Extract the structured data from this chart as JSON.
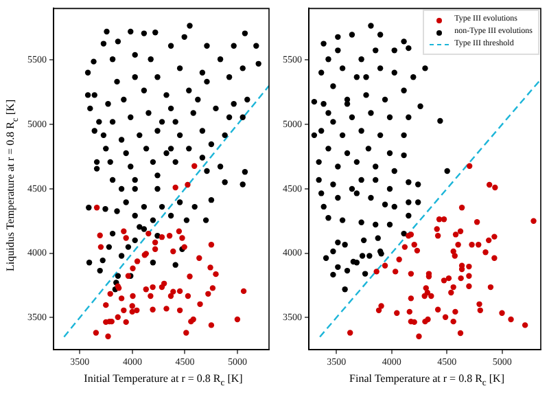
{
  "chart_data": [
    {
      "type": "scatter",
      "xlabel": "Initial Temperature at r = 0.8 R$_{c}$ [K]",
      "ylabel": "Liquidus Temperature at r = 0.8 R$_{c}$ [K]",
      "xlim": [
        3250,
        5300
      ],
      "ylim": [
        3250,
        5900
      ],
      "xticks": [
        3500,
        4000,
        4500,
        5000
      ],
      "yticks": [
        3500,
        4000,
        4500,
        5000,
        5500
      ],
      "grid": false,
      "legend": false,
      "series": [
        {
          "color": "#cc0000",
          "marker": "circle",
          "x": [
            3662,
            3692,
            3700,
            3918,
            3940,
            4153,
            4217,
            4281,
            4354,
            4444,
            4474,
            4495,
            4388,
            4130,
            4217,
            4047,
            4004,
            3961,
            3871,
            3862,
            3790,
            3748,
            3897,
            4004,
            4130,
            4173,
            4194,
            4281,
            4388,
            4366,
            4302,
            4452,
            4529,
            4546,
            4636,
            4751,
            4742,
            4794,
            4721,
            4764,
            4644,
            4452,
            4324,
            4194,
            4042,
            3999,
            3918,
            3999,
            3862,
            3782,
            3803,
            3748,
            3940,
            3654,
            3769,
            4512,
            4580,
            4558,
            4751,
            4999,
            5059,
            4117,
            4590,
            4526,
            4410
          ],
          "values": [
            4354,
            4138,
            4048,
            4170,
            4118,
            4152,
            4083,
            4125,
            4135,
            4170,
            4118,
            4048,
            4014,
            3996,
            4031,
            3937,
            3882,
            3823,
            3729,
            3743,
            3684,
            3597,
            3649,
            3667,
            3719,
            3667,
            3736,
            3736,
            3701,
            3667,
            3764,
            3705,
            3667,
            3819,
            3962,
            4066,
            3889,
            3837,
            3684,
            3729,
            3604,
            3556,
            3569,
            3562,
            3556,
            3590,
            3556,
            3545,
            3503,
            3469,
            3469,
            3465,
            3465,
            3382,
            3354,
            3382,
            3486,
            3469,
            3441,
            3486,
            3705,
            3986,
            4677,
            4531,
            4510
          ]
        },
        {
          "color": "#000000",
          "marker": "circle",
          "x": [
            3756,
            3983,
            4218,
            4546,
            5071,
            4111,
            3726,
            3863,
            3577,
            3632,
            3640,
            3577,
            3598,
            3640,
            3812,
            4025,
            4175,
            4367,
            4495,
            4709,
            4965,
            5178,
            5050,
            5200,
            4837,
            4666,
            4452,
            4239,
            4025,
            3854,
            3769,
            3918,
            4111,
            4324,
            4538,
            4709,
            4922,
            4965,
            4794,
            4580,
            4367,
            4154,
            3983,
            3812,
            3726,
            3897,
            4068,
            4239,
            4452,
            4666,
            4880,
            5050,
            5093,
            4922,
            4751,
            4538,
            4324,
            4132,
            3940,
            3748,
            3790,
            3983,
            4196,
            4410,
            4666,
            4837,
            5071,
            5050,
            4880,
            4709,
            3662,
            3662,
            3812,
            4025,
            4239,
            4025,
            3897,
            4239,
            4367,
            3683,
            4410,
            4623,
            4282,
            3585,
            3590,
            3692,
            3718,
            3778,
            3812,
            3854,
            3940,
            4025,
            4111,
            4196,
            4282,
            4367,
            4452,
            4516,
            4593,
            4700,
            4751,
            3961,
            3897,
            3863,
            3983,
            3837,
            3846,
            4025,
            4196,
            4111,
            4410,
            4474,
            4068,
            4239,
            3743
          ],
          "values": [
            5721,
            5721,
            5714,
            5766,
            5707,
            5707,
            5627,
            5644,
            5402,
            5488,
            5228,
            5228,
            5124,
            4950,
            5506,
            5540,
            5506,
            5610,
            5679,
            5610,
            5610,
            5610,
            5436,
            5471,
            5506,
            5402,
            5436,
            5367,
            5367,
            5332,
            5159,
            5193,
            5263,
            5228,
            5263,
            5332,
            5367,
            5159,
            5124,
            5089,
            5124,
            5089,
            5055,
            5020,
            4916,
            4881,
            4916,
            4950,
            4916,
            4950,
            4916,
            5055,
            5193,
            5055,
            4846,
            4812,
            4777,
            4812,
            4777,
            4812,
            4708,
            4673,
            4708,
            4708,
            4742,
            4673,
            4631,
            4534,
            4551,
            4638,
            4708,
            4656,
            4569,
            4569,
            4604,
            4499,
            4499,
            4499,
            4812,
            5020,
            5020,
            5193,
            5020,
            4354,
            3927,
            3864,
            3944,
            4048,
            4152,
            4326,
            4395,
            4291,
            4360,
            4256,
            4360,
            4291,
            4395,
            4256,
            4360,
            4256,
            4413,
            4048,
            3979,
            3823,
            3823,
            3719,
            3771,
            4100,
            3927,
            4187,
            3909,
            4031,
            4204,
            4135,
            4343
          ]
        },
        {
          "type": "line",
          "color": "#1cb5d8",
          "line_style": "dashed",
          "marker": "none",
          "x": [
            3350,
            5300
          ],
          "values": [
            3350,
            5300
          ]
        }
      ]
    },
    {
      "type": "scatter",
      "xlabel": "Final Temperature at r = 0.8 R$_{c}$ [K]",
      "xlim": [
        3250,
        5350
      ],
      "ylim": [
        3250,
        5900
      ],
      "xticks": [
        3500,
        4000,
        4500,
        5000
      ],
      "yticks": [
        3500,
        4000,
        4500,
        5000,
        5500
      ],
      "grid": false,
      "legend": "top right",
      "series": [
        {
          "name": "Type III evolutions",
          "color": "#cc0000",
          "marker": "circle",
          "x": [
            4705,
            4885,
            4936,
            4153,
            4175,
            4205,
            4119,
            4231,
            4068,
            4034,
            3863,
            3940,
            4175,
            4337,
            4337,
            4636,
            4431,
            4474,
            4410,
            4419,
            4580,
            4623,
            4559,
            4572,
            4602,
            4773,
            4879,
            4930,
            4786,
            4726,
            4850,
            4930,
            5285,
            4636,
            4636,
            4700,
            4700,
            4700,
            4627,
            4559,
            4538,
            4517,
            4474,
            4311,
            4324,
            4358,
            4298,
            4419,
            4487,
            4559,
            4576,
            4623,
            4247,
            4303,
            4328,
            4175,
            4205,
            4162,
            4175,
            4047,
            3884,
            3906,
            3624,
            4794,
            4802,
            4896,
            4999,
            5080,
            5208
          ],
          "values": [
            4677,
            4531,
            4510,
            4135,
            4145,
            4066,
            4048,
            4020,
            3951,
            3857,
            3857,
            3903,
            3840,
            3840,
            3819,
            4354,
            4263,
            4263,
            4187,
            4135,
            4145,
            4170,
            4014,
            3979,
            4066,
            4242,
            4100,
            4128,
            4066,
            4066,
            4007,
            3962,
            4250,
            3903,
            3875,
            3896,
            3823,
            3743,
            3805,
            3736,
            3694,
            3805,
            3788,
            3729,
            3694,
            3667,
            3667,
            3562,
            3503,
            3469,
            3545,
            3379,
            3354,
            3469,
            3486,
            3469,
            3465,
            3545,
            3649,
            3535,
            3556,
            3590,
            3382,
            3604,
            3556,
            3736,
            3535,
            3486,
            3441
          ]
        },
        {
          "name": "non-Type III evolutions",
          "color": "#000000",
          "marker": "circle",
          "x": [
            3812,
            3513,
            3641,
            3897,
            4111,
            3299,
            3299,
            3427,
            3363,
            3555,
            3726,
            3854,
            4025,
            4153,
            4303,
            4196,
            4025,
            3897,
            3684,
            3470,
            3384,
            3598,
            3769,
            3940,
            4111,
            4260,
            4153,
            3983,
            3812,
            3641,
            3470,
            3363,
            3555,
            3726,
            3897,
            4111,
            4439,
            3427,
            3598,
            3790,
            3983,
            4111,
            3341,
            3513,
            3684,
            3854,
            4025,
            4503,
            3341,
            3470,
            3641,
            3854,
            4153,
            4239,
            3726,
            3983,
            3598,
            3427,
            3769,
            3513,
            3384,
            3385,
            3363,
            3513,
            3684,
            3812,
            3940,
            4025,
            4153,
            4239,
            3427,
            3555,
            3726,
            3854,
            3983,
            4153,
            4111,
            3876,
            3748,
            3513,
            3577,
            3470,
            3406,
            3513,
            3653,
            3735,
            3799,
            3897,
            3906,
            3760,
            3598,
            3470,
            3577,
            3684
          ],
          "values": [
            5766,
            5679,
            5697,
            5697,
            5644,
            5176,
            4916,
            5506,
            5402,
            5436,
            5506,
            5575,
            5575,
            5592,
            5436,
            5367,
            5402,
            5436,
            5367,
            5297,
            5159,
            5159,
            5228,
            5193,
            5263,
            5141,
            5055,
            5055,
            5089,
            5055,
            5020,
            4950,
            4916,
            4950,
            4916,
            4916,
            5027,
            4812,
            4777,
            4812,
            4777,
            4760,
            4708,
            4673,
            4708,
            4673,
            4638,
            4638,
            4569,
            4534,
            4499,
            4569,
            4551,
            4534,
            4569,
            4499,
            5193,
            5089,
            5367,
            5575,
            5627,
            4361,
            4465,
            4430,
            4465,
            4430,
            4378,
            4361,
            4395,
            4395,
            4274,
            4256,
            4239,
            4222,
            4222,
            4291,
            4152,
            4117,
            4100,
            4083,
            4066,
            4014,
            3962,
            3892,
            3934,
            3979,
            3979,
            4014,
            3996,
            3840,
            3864,
            3833,
            3719,
            3927
          ]
        },
        {
          "type": "line",
          "name": "Type III threshold",
          "color": "#1cb5d8",
          "line_style": "dashed",
          "marker": "none",
          "x": [
            3350,
            5350
          ],
          "values": [
            3350,
            5350
          ]
        }
      ]
    }
  ]
}
